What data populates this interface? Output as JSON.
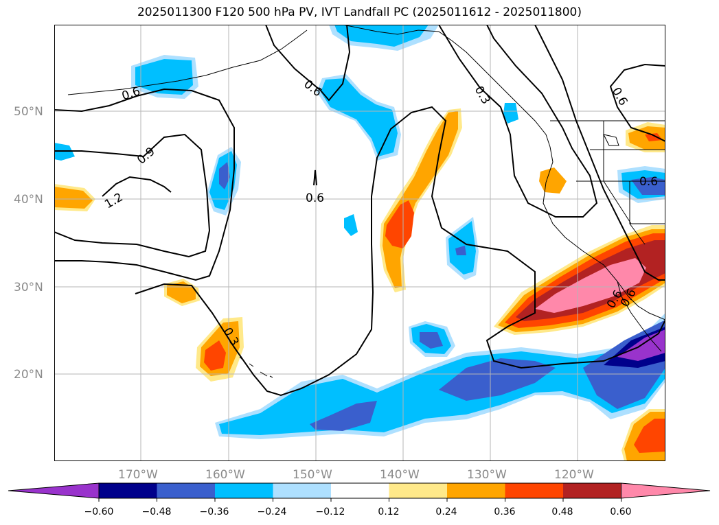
{
  "title": "2025011300 F120 500 hPa PV, IVT Landfall PC (2025011612 - 2025011800)",
  "map": {
    "lat_labels": [
      "50°N",
      "40°N",
      "30°N",
      "20°N"
    ],
    "lon_labels": [
      "170°W",
      "160°W",
      "150°W",
      "140°W",
      "130°W",
      "120°W"
    ],
    "contour_labels": [
      "0.6",
      "0.6",
      "0.3",
      "0.6",
      "0.9",
      "1.2",
      "0.6",
      "0.3",
      "0.6",
      "0.6",
      "0.6"
    ]
  },
  "colorbar": {
    "ticks": [
      "−0.60",
      "−0.48",
      "−0.36",
      "−0.24",
      "−0.12",
      "0.12",
      "0.24",
      "0.36",
      "0.48",
      "0.60"
    ],
    "colors": [
      "#9933cc",
      "#00008b",
      "#3a5fcd",
      "#00bfff",
      "#aee0ff",
      "#ffffff",
      "#ffe98a",
      "#ffa500",
      "#ff4500",
      "#b22222",
      "#ff88aa"
    ]
  }
}
